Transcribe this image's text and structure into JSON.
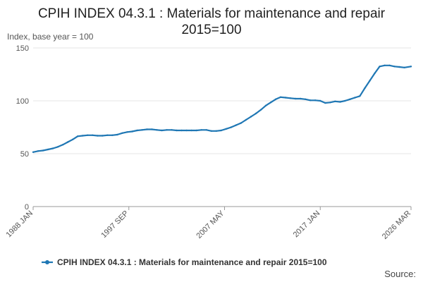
{
  "chart_data": {
    "type": "line",
    "title": "CPIH INDEX 04.3.1 : Materials for maintenance and repair 2015=100",
    "title_lines": [
      "CPIH INDEX 04.3.1 : Materials for maintenance and repair",
      "2015=100"
    ],
    "ylabel": "Index, base year = 100",
    "xlabel": "",
    "ylim": [
      0,
      150
    ],
    "yticks": [
      0,
      50,
      100,
      150
    ],
    "xlim": [
      "1988-01",
      "2026-03"
    ],
    "xticks": [
      "1988 JAN",
      "1997 SEP",
      "2007 MAY",
      "2017 JAN",
      "2026 MAR"
    ],
    "grid": true,
    "legend_position": "bottom",
    "series": [
      {
        "name": "CPIH INDEX 04.3.1 : Materials for maintenance and repair 2015=100",
        "color": "#1f77b4",
        "points": [
          [
            "1988-01",
            51.5
          ],
          [
            "1988-07",
            52.5
          ],
          [
            "1989-01",
            53.0
          ],
          [
            "1989-07",
            54.0
          ],
          [
            "1990-01",
            55.0
          ],
          [
            "1990-07",
            56.5
          ],
          [
            "1991-01",
            58.5
          ],
          [
            "1991-07",
            61.0
          ],
          [
            "1992-01",
            63.5
          ],
          [
            "1992-07",
            66.5
          ],
          [
            "1993-01",
            67.0
          ],
          [
            "1993-07",
            67.5
          ],
          [
            "1994-01",
            67.5
          ],
          [
            "1994-07",
            67.0
          ],
          [
            "1995-01",
            67.0
          ],
          [
            "1995-07",
            67.5
          ],
          [
            "1996-01",
            67.5
          ],
          [
            "1996-07",
            68.0
          ],
          [
            "1997-01",
            69.5
          ],
          [
            "1997-07",
            70.5
          ],
          [
            "1998-01",
            71.0
          ],
          [
            "1998-07",
            72.0
          ],
          [
            "1999-01",
            72.5
          ],
          [
            "1999-07",
            73.0
          ],
          [
            "2000-01",
            73.0
          ],
          [
            "2000-07",
            72.5
          ],
          [
            "2001-01",
            72.0
          ],
          [
            "2001-07",
            72.5
          ],
          [
            "2002-01",
            72.5
          ],
          [
            "2002-07",
            72.0
          ],
          [
            "2003-01",
            72.0
          ],
          [
            "2003-07",
            72.0
          ],
          [
            "2004-01",
            72.0
          ],
          [
            "2004-07",
            72.0
          ],
          [
            "2005-01",
            72.5
          ],
          [
            "2005-07",
            72.5
          ],
          [
            "2006-01",
            71.5
          ],
          [
            "2006-07",
            71.5
          ],
          [
            "2007-01",
            72.0
          ],
          [
            "2007-07",
            73.5
          ],
          [
            "2008-01",
            75.0
          ],
          [
            "2008-07",
            77.0
          ],
          [
            "2009-01",
            79.0
          ],
          [
            "2009-07",
            82.0
          ],
          [
            "2010-01",
            85.0
          ],
          [
            "2010-07",
            88.0
          ],
          [
            "2011-01",
            91.5
          ],
          [
            "2011-07",
            95.5
          ],
          [
            "2012-01",
            98.5
          ],
          [
            "2012-07",
            101.5
          ],
          [
            "2013-01",
            103.5
          ],
          [
            "2013-07",
            103.0
          ],
          [
            "2014-01",
            102.5
          ],
          [
            "2014-07",
            102.0
          ],
          [
            "2015-01",
            102.0
          ],
          [
            "2015-07",
            101.5
          ],
          [
            "2016-01",
            100.5
          ],
          [
            "2016-07",
            100.5
          ],
          [
            "2017-01",
            100.0
          ],
          [
            "2017-07",
            98.0
          ],
          [
            "2018-01",
            98.5
          ],
          [
            "2018-07",
            99.5
          ],
          [
            "2019-01",
            99.0
          ],
          [
            "2019-07",
            100.0
          ],
          [
            "2020-01",
            101.5
          ],
          [
            "2020-07",
            103.0
          ],
          [
            "2021-01",
            104.5
          ],
          [
            "2021-07",
            112.0
          ],
          [
            "2022-01",
            119.0
          ],
          [
            "2022-07",
            126.0
          ],
          [
            "2023-01",
            132.5
          ],
          [
            "2023-07",
            133.5
          ],
          [
            "2024-01",
            133.5
          ],
          [
            "2024-07",
            132.5
          ],
          [
            "2025-01",
            132.0
          ],
          [
            "2025-07",
            131.5
          ],
          [
            "2026-03",
            132.5
          ]
        ]
      }
    ],
    "source_label": "Source:"
  }
}
